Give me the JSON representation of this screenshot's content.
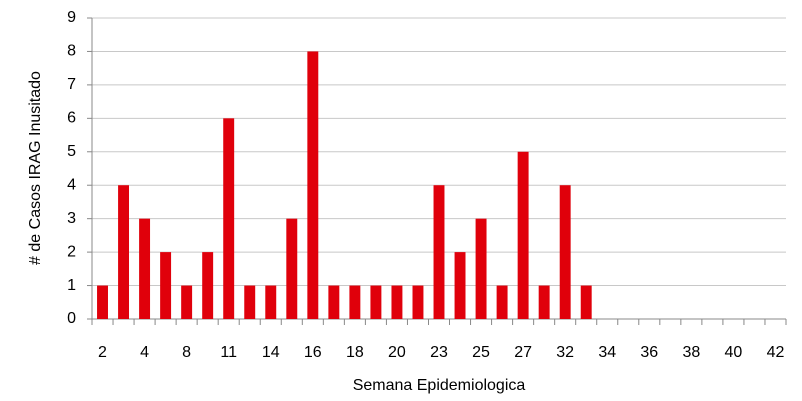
{
  "chart_data": {
    "type": "bar",
    "x_label": "Semana Epidemiologica",
    "y_label": "# de Casos IRAG Inusitado",
    "categories": [
      "2",
      null,
      "4",
      null,
      "8",
      null,
      "11",
      null,
      "14",
      null,
      "16",
      null,
      "18",
      null,
      "20",
      null,
      "23",
      null,
      "25",
      null,
      "27",
      null,
      "32",
      null,
      "34",
      null,
      "36",
      null,
      "38",
      null,
      "40",
      null,
      "42"
    ],
    "values": [
      1,
      4,
      3,
      2,
      1,
      2,
      6,
      1,
      1,
      3,
      8,
      1,
      1,
      1,
      1,
      1,
      4,
      2,
      3,
      1,
      5,
      1,
      4,
      1,
      0,
      0,
      0,
      0,
      0,
      0,
      0,
      0,
      0
    ],
    "color": "#e0000b",
    "ylim": [
      0,
      9
    ],
    "yticks": [
      0,
      1,
      2,
      3,
      4,
      5,
      6,
      7,
      8,
      9
    ],
    "grid": true
  }
}
